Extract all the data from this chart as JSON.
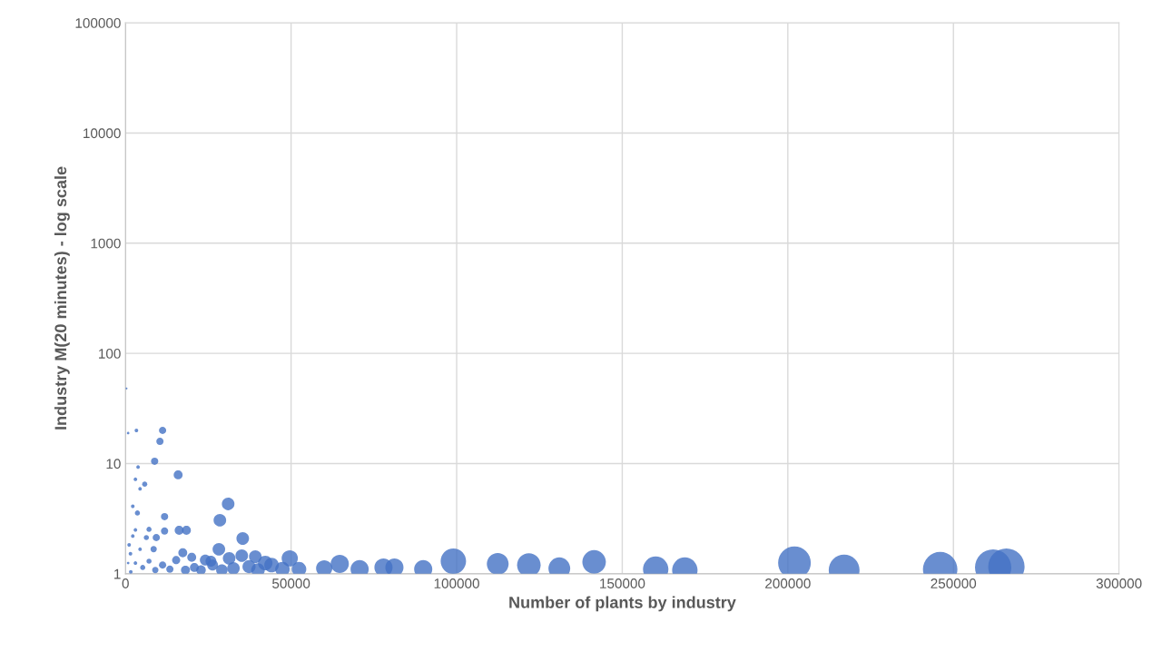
{
  "chart_data": {
    "type": "bubble",
    "xlabel": "Number of plants by industry",
    "ylabel": "Industry M(20 minutes) - log scale",
    "log": "y",
    "grid": true,
    "legend": false,
    "xlim": [
      0,
      300000
    ],
    "xticks": [
      0,
      50000,
      100000,
      150000,
      200000,
      250000,
      300000
    ],
    "ylim": [
      1,
      100000
    ],
    "yticks": [
      1,
      10,
      100,
      1000,
      10000,
      100000
    ],
    "series": [
      {
        "color": "#4472c4",
        "x": [
          202000,
          217000,
          246000,
          262000,
          266000,
          112400,
          121800,
          131000,
          141500,
          160100,
          168900,
          99000,
          89900,
          81200,
          77900,
          70700,
          64700,
          60000,
          52400,
          49600,
          47400,
          42200,
          39200,
          35400,
          35100,
          31300,
          28500,
          28200,
          25800,
          24100,
          20000,
          17300,
          18400,
          16200,
          11800,
          11800,
          9300,
          6300,
          7100,
          3600,
          11200,
          10400,
          8800,
          15900,
          31000,
          3300,
          3800,
          5800,
          3000,
          4400,
          2200,
          3000,
          800,
          300,
          1500,
          3000,
          5200,
          7100,
          9000,
          11200,
          13400,
          15300,
          18100,
          20800,
          22800,
          26300,
          29100,
          32600,
          37300,
          40000,
          44100,
          1100,
          2200,
          4400,
          8500,
          800,
          1600
        ],
        "values": [
          1.26,
          1.08,
          1.1,
          1.14,
          1.16,
          1.23,
          1.2,
          1.12,
          1.28,
          1.1,
          1.08,
          1.3,
          1.1,
          1.14,
          1.14,
          1.1,
          1.23,
          1.12,
          1.1,
          1.38,
          1.1,
          1.25,
          1.43,
          2.09,
          1.46,
          1.38,
          3.06,
          1.67,
          1.3,
          1.33,
          1.41,
          1.55,
          2.48,
          2.48,
          2.44,
          3.3,
          2.13,
          2.13,
          2.53,
          3.56,
          20,
          15.9,
          10.5,
          7.9,
          4.3,
          20,
          9.3,
          6.5,
          7.2,
          5.9,
          4.1,
          2.5,
          18.9,
          48,
          1.52,
          1.25,
          1.14,
          1.3,
          1.08,
          1.2,
          1.1,
          1.33,
          1.08,
          1.14,
          1.08,
          1.2,
          1.08,
          1.12,
          1.16,
          1.08,
          1.2,
          1.83,
          2.2,
          1.67,
          1.67,
          1.25,
          1.04
        ],
        "sizes": [
          0.81,
          0.72,
          0.9,
          1,
          1,
          0.36,
          0.42,
          0.36,
          0.42,
          0.49,
          0.49,
          0.49,
          0.25,
          0.25,
          0.25,
          0.25,
          0.25,
          0.2,
          0.16,
          0.2,
          0.16,
          0.16,
          0.12,
          0.12,
          0.12,
          0.12,
          0.12,
          0.12,
          0.09,
          0.09,
          0.06,
          0.06,
          0.06,
          0.06,
          0.04,
          0.04,
          0.04,
          0.02,
          0.02,
          0.02,
          0.04,
          0.04,
          0.04,
          0.06,
          0.12,
          0.01,
          0.01,
          0.02,
          0.01,
          0.01,
          0.01,
          0.01,
          0.005,
          0.003,
          0.01,
          0.01,
          0.02,
          0.02,
          0.03,
          0.04,
          0.04,
          0.05,
          0.06,
          0.06,
          0.07,
          0.09,
          0.1,
          0.12,
          0.13,
          0.14,
          0.16,
          0.01,
          0.01,
          0.01,
          0.03,
          0.005,
          0.01
        ]
      }
    ]
  }
}
